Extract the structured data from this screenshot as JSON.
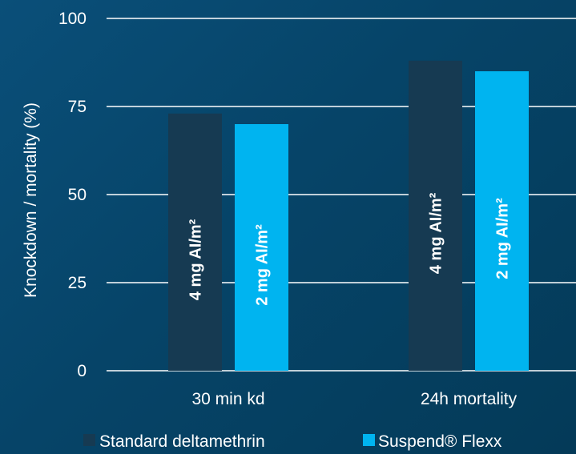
{
  "chart_data": {
    "type": "bar",
    "ylabel": "Knockdown / mortality (%)",
    "xlabel": "",
    "ylim": [
      0,
      100
    ],
    "yticks": [
      0,
      25,
      50,
      75,
      100
    ],
    "categories": [
      "30 min kd",
      "24h mortality"
    ],
    "series": [
      {
        "name": "Standard deltamethrin",
        "color": "#163a52",
        "values": [
          73,
          88
        ],
        "bar_labels": [
          "4 mg AI/m²",
          "4 mg AI/m²"
        ]
      },
      {
        "name": "Suspend® Flexx",
        "color": "#00b4f0",
        "values": [
          70,
          85
        ],
        "bar_labels": [
          "2 mg AI/m²",
          "2 mg AI/m²"
        ]
      }
    ],
    "grid": true,
    "legend_position": "bottom"
  }
}
